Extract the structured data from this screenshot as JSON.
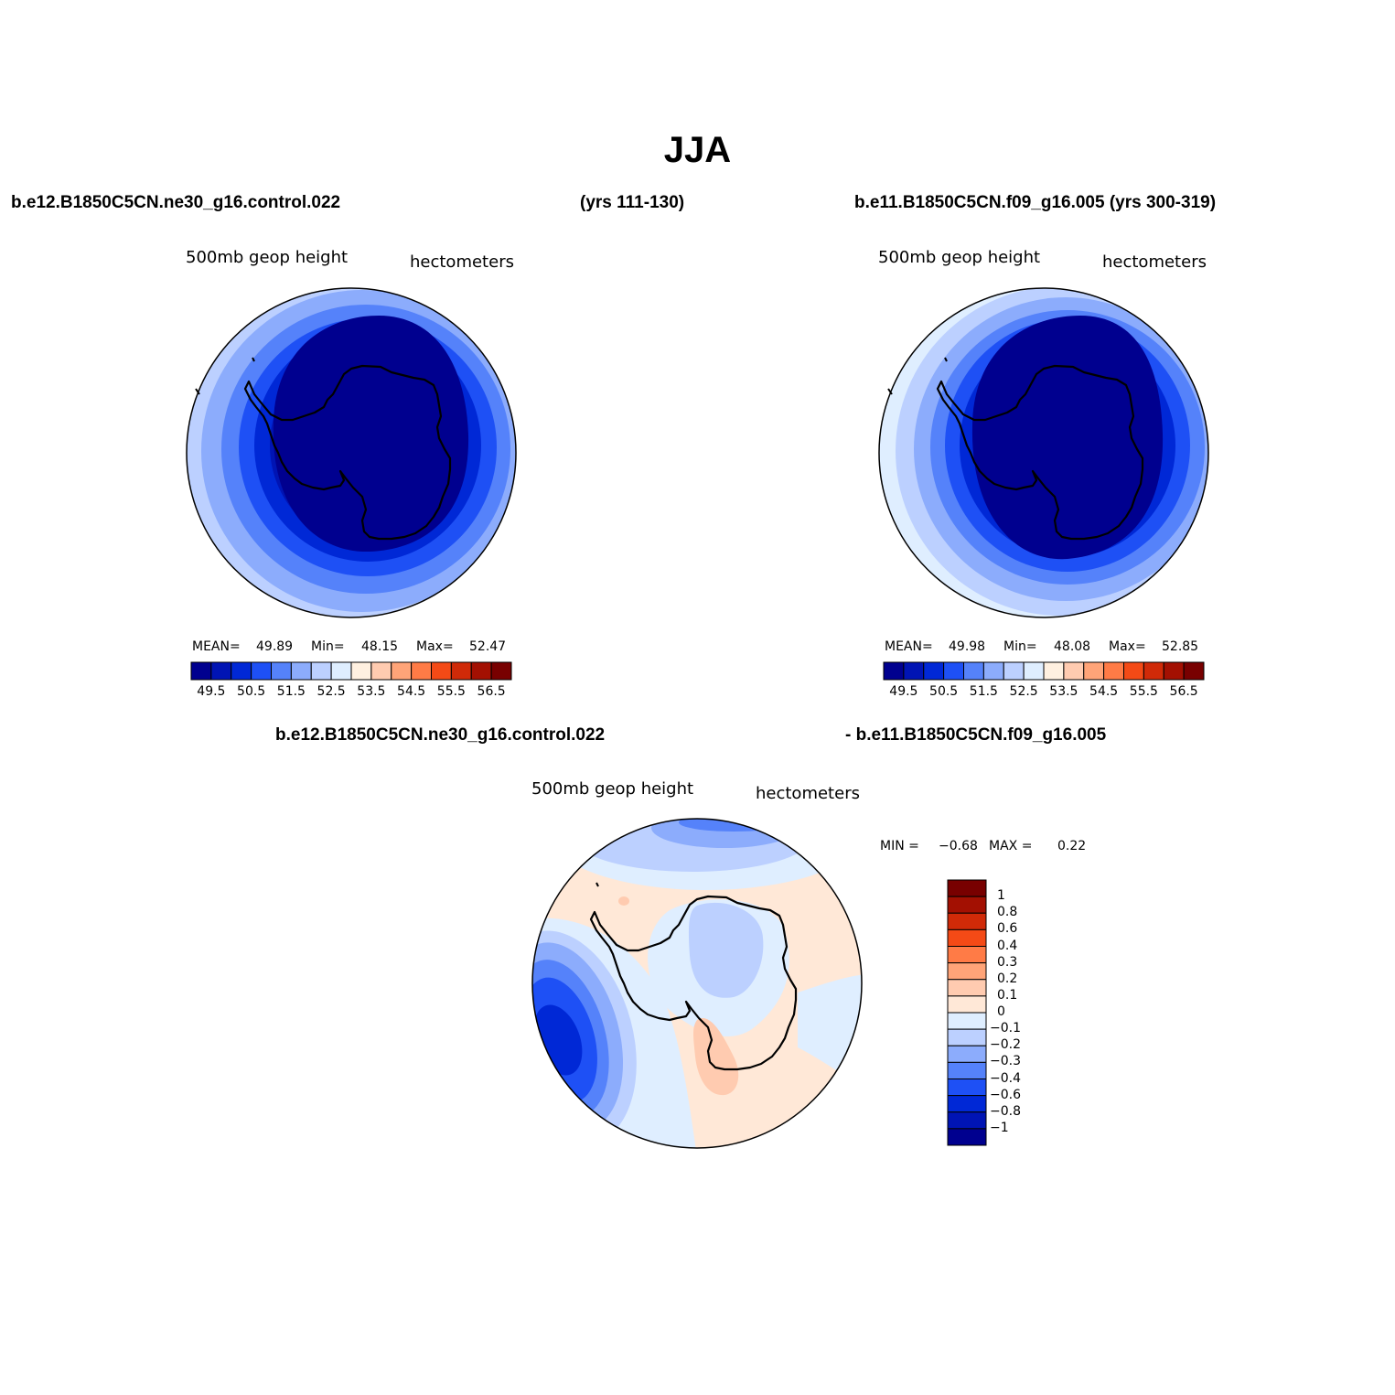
{
  "figure": {
    "title": "JJA"
  },
  "panels": [
    {
      "case_name": "b.e12.B1850C5CN.ne30_g16.control.022",
      "years": "(yrs 111-130)",
      "variable": "500mb  geop  height",
      "units": "hectometers",
      "stats": {
        "mean_label": "MEAN=",
        "mean": "49.89",
        "min_label": "Min=",
        "min": "48.15",
        "max_label": "Max=",
        "max": "52.47"
      },
      "colorbar_ticks": [
        "49.5",
        "50.5",
        "51.5",
        "52.5",
        "53.5",
        "54.5",
        "55.5",
        "56.5"
      ]
    },
    {
      "case_name": "b.e11.B1850C5CN.f09_g16.005",
      "years": "(yrs 300-319)",
      "variable": "500mb  geop  height",
      "units": "hectometers",
      "stats": {
        "mean_label": "MEAN=",
        "mean": "49.98",
        "min_label": "Min=",
        "min": "48.08",
        "max_label": "Max=",
        "max": "52.85"
      },
      "colorbar_ticks": [
        "49.5",
        "50.5",
        "51.5",
        "52.5",
        "53.5",
        "54.5",
        "55.5",
        "56.5"
      ]
    }
  ],
  "difference": {
    "case_a": "b.e12.B1850C5CN.ne30_g16.control.022",
    "case_b": "- b.e11.B1850C5CN.f09_g16.005",
    "variable": "500mb  geop  height",
    "units": "hectometers",
    "stats": {
      "min_label": "MIN =",
      "min": "−0.68",
      "max_label": "MAX =",
      "max": "0.22"
    },
    "colorbar_ticks": [
      "1",
      "0.8",
      "0.6",
      "0.4",
      "0.3",
      "0.2",
      "0.1",
      "0",
      "−0.1",
      "−0.2",
      "−0.3",
      "−0.4",
      "−0.6",
      "−0.8",
      "−1"
    ]
  },
  "chart_data": [
    {
      "type": "heatmap",
      "projection": "south polar stereographic",
      "title": "500mb  geop  height",
      "units": "hectometers",
      "levels": [
        49.5,
        50,
        50.5,
        51,
        51.5,
        52,
        52.5,
        53,
        53.5,
        54,
        54.5,
        55,
        55.5,
        56,
        56.5
      ],
      "mean": 49.89,
      "min": 48.15,
      "max": 52.47
    },
    {
      "type": "heatmap",
      "projection": "south polar stereographic",
      "title": "500mb  geop  height",
      "units": "hectometers",
      "levels": [
        49.5,
        50,
        50.5,
        51,
        51.5,
        52,
        52.5,
        53,
        53.5,
        54,
        54.5,
        55,
        55.5,
        56,
        56.5
      ],
      "mean": 49.98,
      "min": 48.08,
      "max": 52.85
    },
    {
      "type": "heatmap",
      "projection": "south polar stereographic",
      "title": "500mb  geop  height",
      "units": "hectometers",
      "levels": [
        -1,
        -0.8,
        -0.6,
        -0.4,
        -0.3,
        -0.2,
        -0.1,
        0,
        0.1,
        0.2,
        0.3,
        0.4,
        0.6,
        0.8,
        1
      ],
      "min": -0.68,
      "max": 0.22
    }
  ],
  "colors": {
    "abs_scale": [
      "#00008f",
      "#0014b4",
      "#0028d6",
      "#1e50f5",
      "#5582fa",
      "#8cacfc",
      "#bcd0ff",
      "#dfeeff",
      "#fff0e0",
      "#ffcbb0",
      "#ffa478",
      "#ff7b46",
      "#f44a16",
      "#d02a08",
      "#a31002",
      "#780000"
    ],
    "diff_scale": [
      "#00008f",
      "#0014b4",
      "#0028d6",
      "#1e50f5",
      "#5582fa",
      "#8cacfc",
      "#bcd0ff",
      "#dfeeff",
      "#ffe8d7",
      "#ffcbb0",
      "#ffa478",
      "#ff7b46",
      "#f44a16",
      "#d02a08",
      "#a31002",
      "#780000"
    ]
  }
}
